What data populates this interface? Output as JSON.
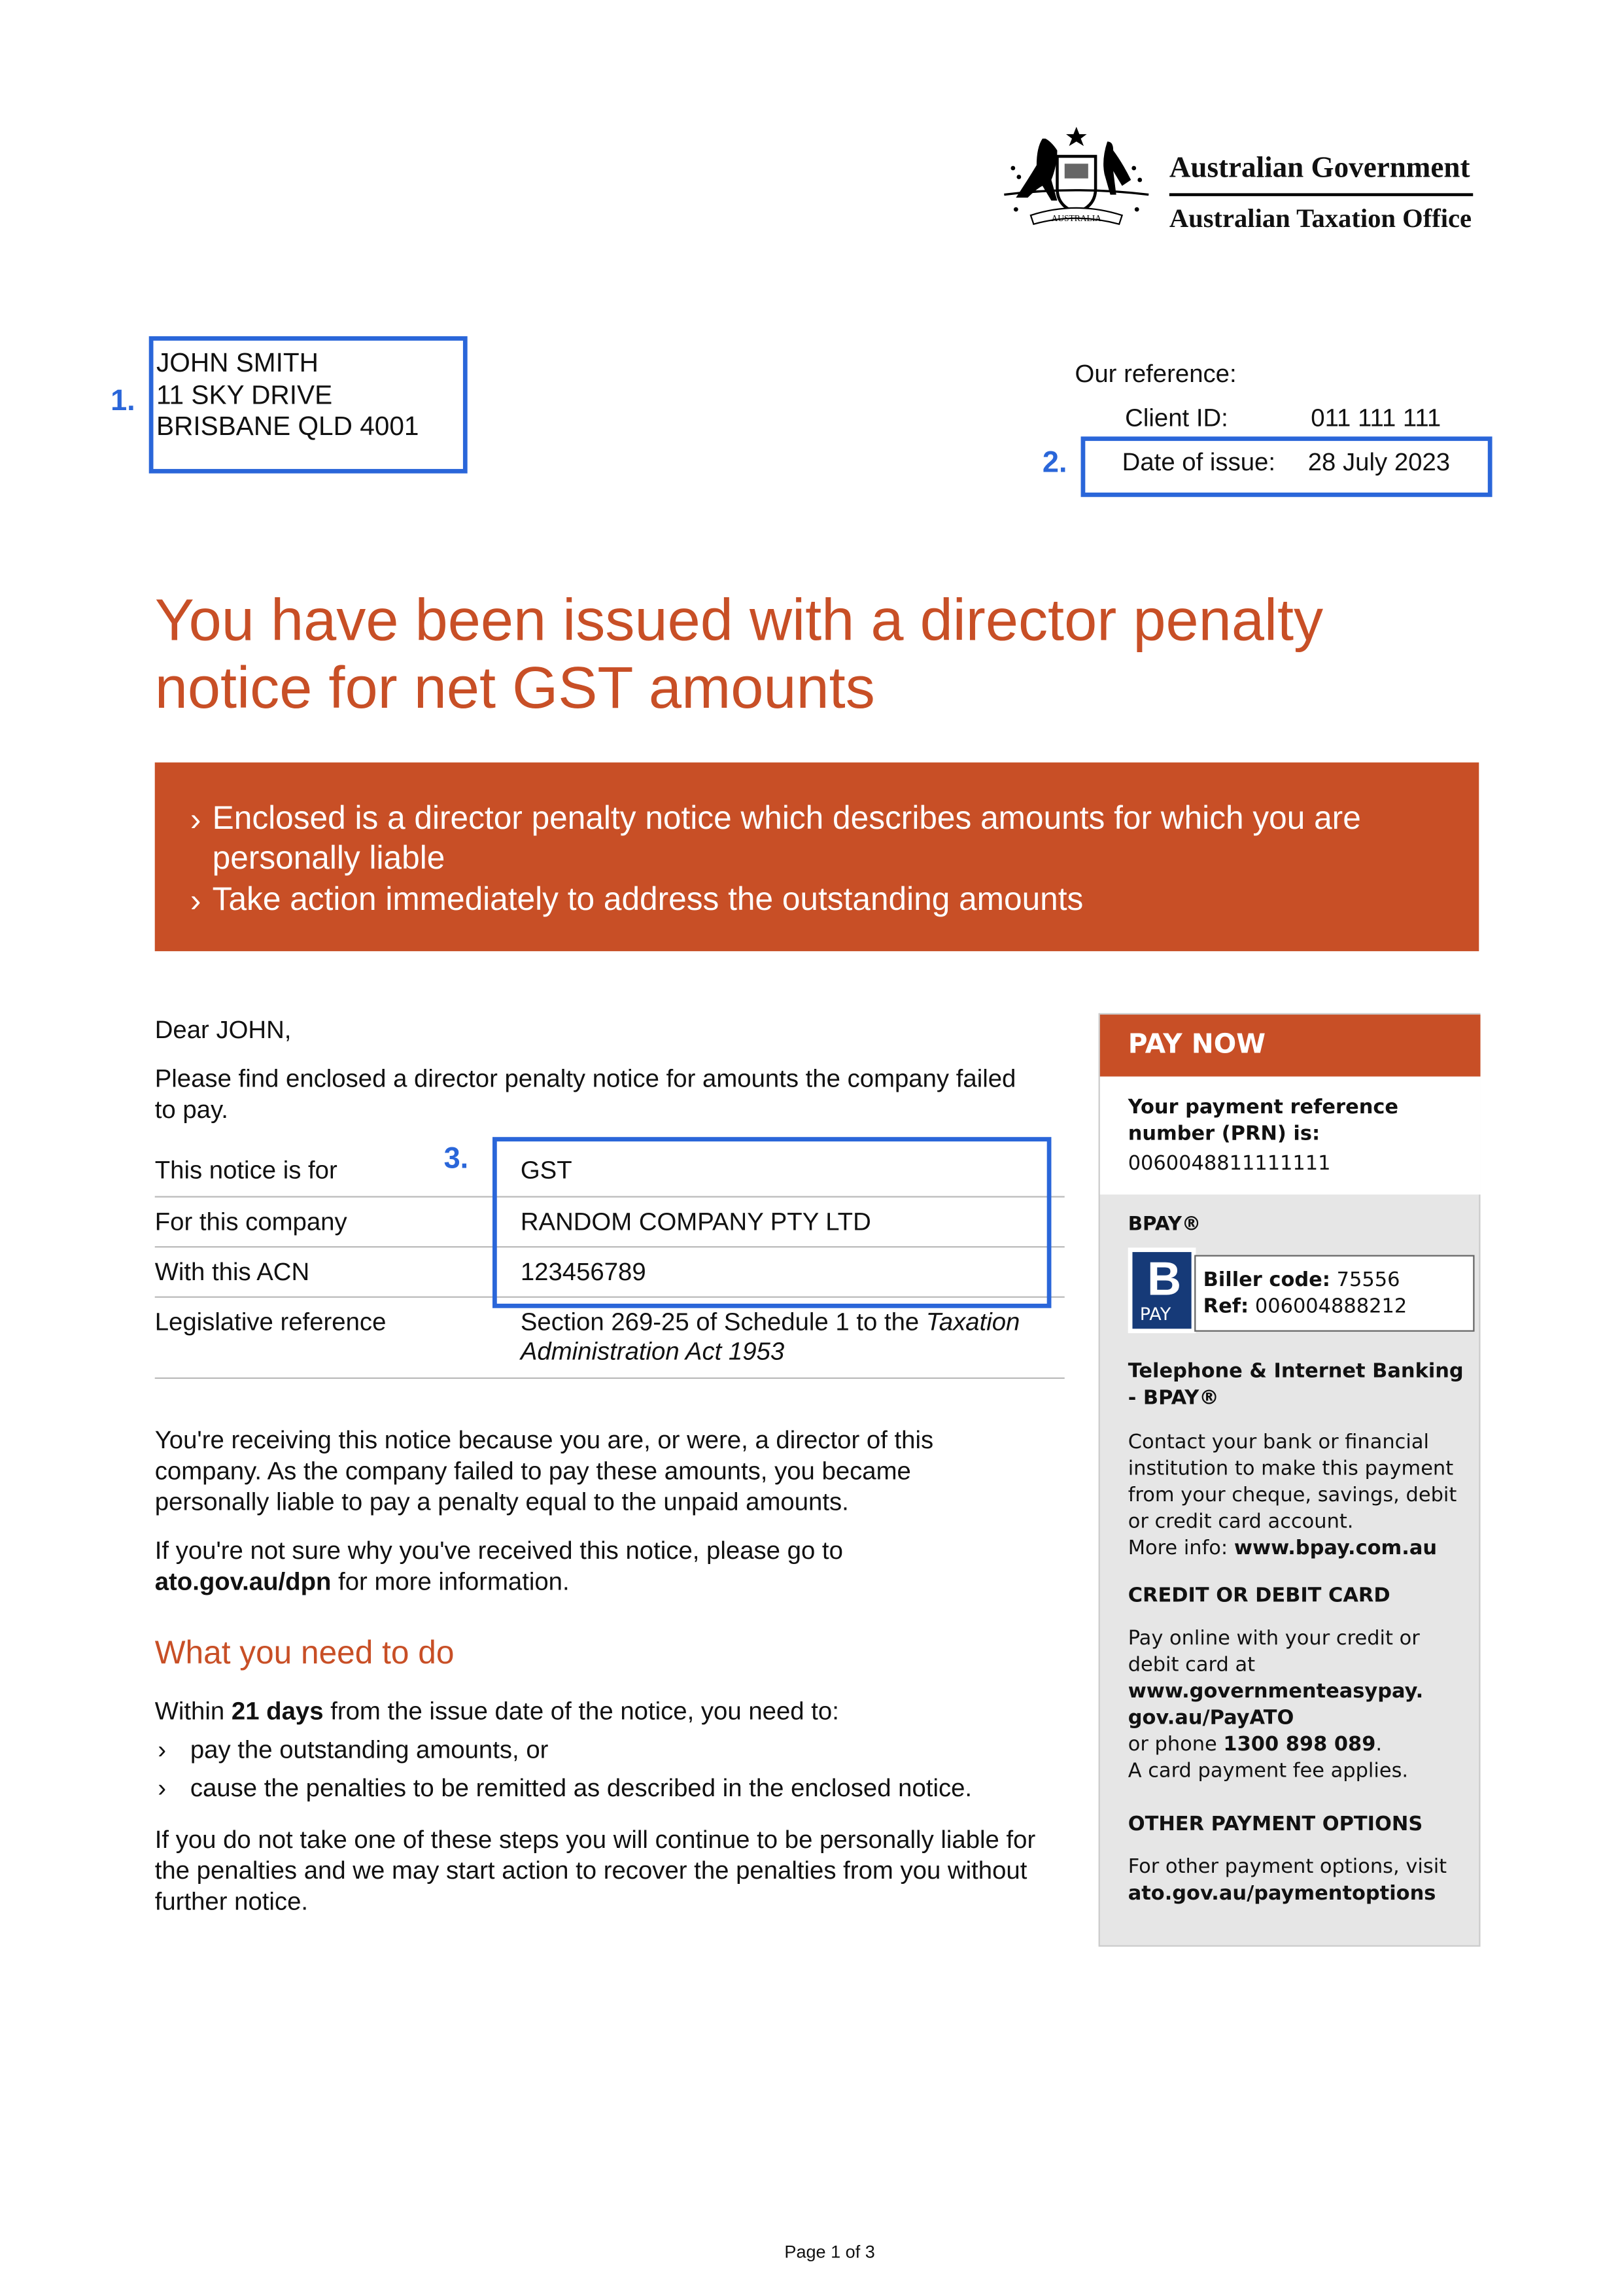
{
  "header": {
    "gov": "Australian Government",
    "agency": "Australian Taxation Office",
    "crest_text": "AUSTRALIA",
    "crest_icon": "commonwealth-coat-of-arms"
  },
  "markers": {
    "m1": "1.",
    "m2": "2.",
    "m3": "3.",
    "color": "#2a66d9"
  },
  "address": {
    "lines": [
      "JOHN SMITH",
      "11 SKY DRIVE",
      "BRISBANE QLD 4001"
    ]
  },
  "reference": {
    "title": "Our reference:",
    "client_label": "Client ID:",
    "client_value": "011 111 111",
    "date_label": "Date of issue:",
    "date_value": "28 July 2023"
  },
  "title": {
    "line1": "You have been issued with a director penalty",
    "line2": "notice for net GST amounts",
    "color": "#c84f26"
  },
  "banner": {
    "items": [
      "Enclosed is a director penalty notice which describes amounts for which you are personally liable",
      "Take action immediately to address the outstanding amounts"
    ],
    "bullet": "›"
  },
  "letter": {
    "greeting": "Dear  JOHN,",
    "intro": "Please find enclosed a director penalty notice for amounts the company failed to pay.",
    "table": [
      {
        "label": "This notice is for",
        "value": "GST"
      },
      {
        "label": "For this company",
        "value": "RANDOM COMPANY PTY LTD"
      },
      {
        "label": "With this ACN",
        "value": "123456789"
      },
      {
        "label": "Legislative reference",
        "value": "Section 269-25 of Schedule 1 to the ",
        "value_italic": "Taxation Administration Act 1953"
      }
    ],
    "p1": "You're receiving this notice because you are, or were, a director of this company. As the company failed to pay these amounts, you became personally liable to pay a penalty equal to the unpaid amounts.",
    "p2_pre": "If you're not sure why you've received this notice, please go to ",
    "p2_link": "ato.gov.au/dpn",
    "p2_post": " for more information.",
    "h2": "What you need to do",
    "p3_pre": "Within ",
    "p3_bold": "21 days",
    "p3_post": " from the issue date of the notice, you need to:",
    "bullets": [
      "pay the outstanding amounts, or",
      "cause the penalties to be remitted as described in the enclosed notice."
    ],
    "p4": "If you do not take one of these steps you will continue to be personally liable for the penalties and we may start action to recover the penalties from you without further notice."
  },
  "pay": {
    "title": "PAY NOW",
    "prn_label": "Your payment reference number (PRN) is:",
    "prn": "0060048811111111",
    "bpay_heading": "BPAY®",
    "bpay_logo": "PAY",
    "biller_label": "Biller code:",
    "biller": " 75556",
    "ref_label": "Ref:",
    "ref": " 006004888212",
    "tib_heading": "Telephone & Internet Banking - BPAY®",
    "tib_text": "Contact your bank or financial institution to make this payment from your cheque, savings, debit or credit card account.",
    "tib_more": "More info: ",
    "tib_link": "www.bpay.com.au",
    "card_heading": "CREDIT OR DEBIT CARD",
    "card_text": "Pay online with your credit or debit card at",
    "card_link": "www.governmenteasypay. gov.au/PayATO",
    "card_phone_pre": "or phone ",
    "card_phone": "1300 898 089",
    "card_phone_post": ".",
    "card_fee": "A card payment fee applies.",
    "other_heading": "OTHER PAYMENT OPTIONS",
    "other_text": "For other payment options, visit",
    "other_link": "ato.gov.au/paymentoptions"
  },
  "footer": {
    "page": "Page 1 of 3"
  }
}
